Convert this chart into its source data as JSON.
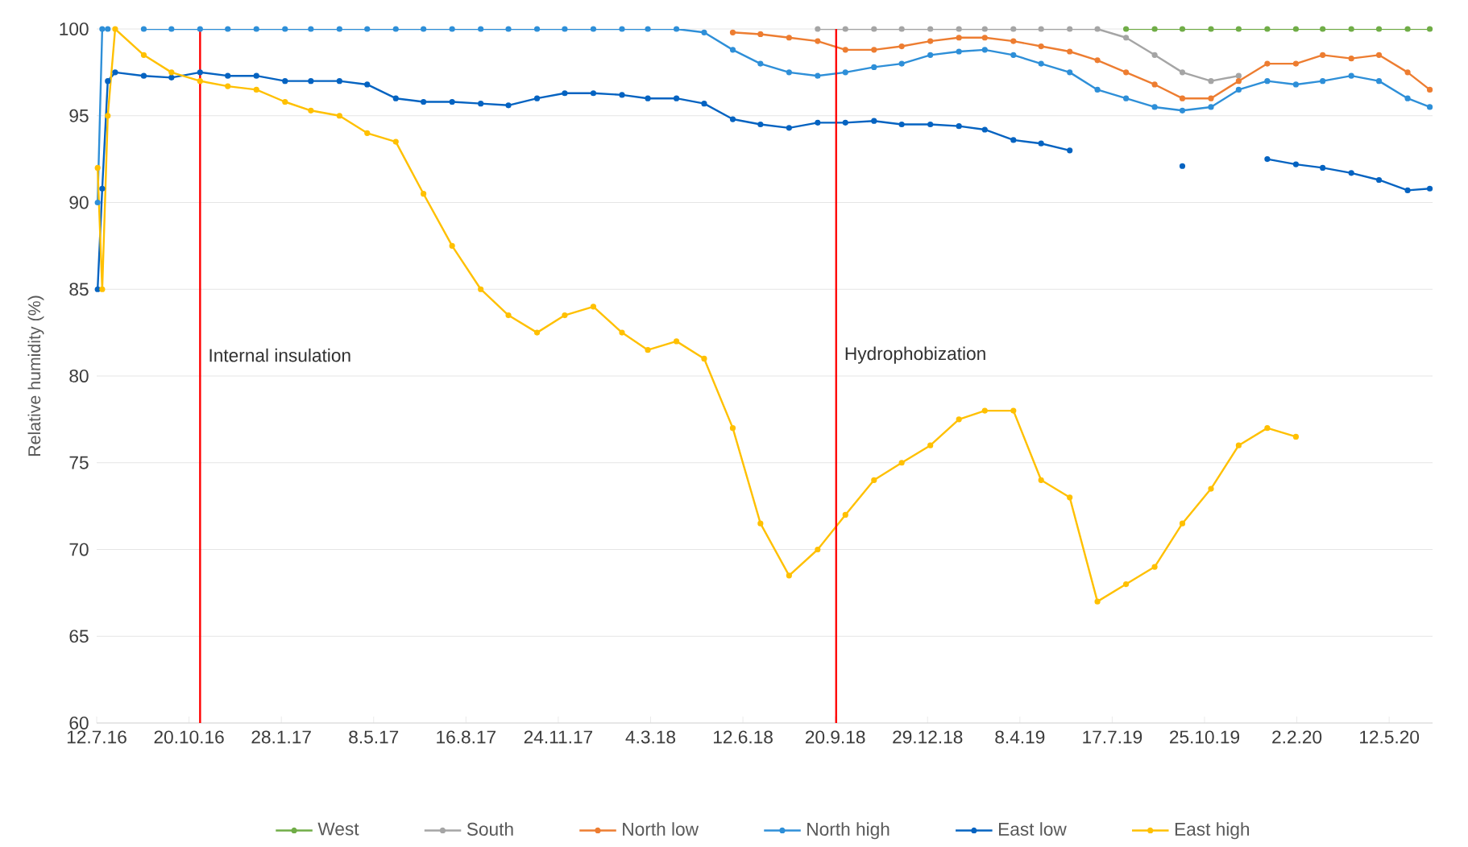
{
  "chart_data": {
    "type": "line",
    "ylabel": "Relative humidity (%)",
    "x": [
      "2016-07-13",
      "2016-07-18",
      "2016-07-24",
      "2016-08-01",
      "2016-09-01",
      "2016-10-01",
      "2016-11-01",
      "2016-12-01",
      "2017-01-01",
      "2017-02-01",
      "2017-03-01",
      "2017-04-01",
      "2017-05-01",
      "2017-06-01",
      "2017-07-01",
      "2017-08-01",
      "2017-09-01",
      "2017-10-01",
      "2017-11-01",
      "2017-12-01",
      "2018-01-01",
      "2018-02-01",
      "2018-03-01",
      "2018-04-01",
      "2018-05-01",
      "2018-06-01",
      "2018-07-01",
      "2018-08-01",
      "2018-09-01",
      "2018-10-01",
      "2018-11-01",
      "2018-12-01",
      "2019-01-01",
      "2019-02-01",
      "2019-03-01",
      "2019-04-01",
      "2019-05-01",
      "2019-06-01",
      "2019-07-01",
      "2019-08-01",
      "2019-09-01",
      "2019-10-01",
      "2019-11-01",
      "2019-12-01",
      "2020-01-01",
      "2020-02-01",
      "2020-03-01",
      "2020-04-01",
      "2020-05-01",
      "2020-06-01",
      "2020-06-25"
    ],
    "series": [
      {
        "name": "West",
        "color": "#70ad47",
        "values": [
          null,
          null,
          null,
          null,
          null,
          null,
          null,
          null,
          null,
          null,
          null,
          null,
          null,
          null,
          null,
          null,
          null,
          null,
          null,
          null,
          null,
          null,
          null,
          null,
          null,
          null,
          null,
          null,
          null,
          null,
          null,
          null,
          null,
          null,
          null,
          null,
          null,
          null,
          null,
          100,
          100,
          100,
          100,
          100,
          100,
          100,
          100,
          100,
          100,
          100,
          100
        ]
      },
      {
        "name": "South",
        "color": "#a5a5a5",
        "values": [
          null,
          null,
          null,
          null,
          null,
          null,
          null,
          null,
          null,
          null,
          null,
          null,
          null,
          null,
          null,
          null,
          null,
          null,
          null,
          null,
          null,
          null,
          null,
          null,
          null,
          null,
          null,
          null,
          100,
          100,
          100,
          100,
          100,
          100,
          100,
          100,
          100,
          100,
          100,
          99.5,
          98.5,
          97.5,
          97,
          97.3,
          null,
          null,
          null,
          null,
          null,
          null,
          null
        ]
      },
      {
        "name": "North low",
        "color": "#ed7d31",
        "values": [
          null,
          null,
          null,
          null,
          null,
          null,
          null,
          null,
          null,
          null,
          null,
          null,
          null,
          null,
          null,
          null,
          null,
          null,
          null,
          null,
          null,
          null,
          null,
          null,
          null,
          99.8,
          99.7,
          99.5,
          99.3,
          98.8,
          98.8,
          99,
          99.3,
          99.5,
          99.5,
          99.3,
          99,
          98.7,
          98.2,
          97.5,
          96.8,
          96,
          96,
          97,
          98,
          98,
          98.5,
          98.3,
          98.5,
          97.5,
          96.5
        ]
      },
      {
        "name": "North high",
        "color": "#2e8fd8",
        "values": [
          90,
          100,
          100,
          null,
          100,
          100,
          100,
          100,
          100,
          100,
          100,
          100,
          100,
          100,
          100,
          100,
          100,
          100,
          100,
          100,
          100,
          100,
          100,
          100,
          99.8,
          98.8,
          98,
          97.5,
          97.3,
          97.5,
          97.8,
          98,
          98.5,
          98.7,
          98.8,
          98.5,
          98,
          97.5,
          96.5,
          96,
          95.5,
          95.3,
          95.5,
          96.5,
          97,
          96.8,
          97,
          97.3,
          97,
          96,
          95.5
        ]
      },
      {
        "name": "East low",
        "color": "#0563c1",
        "values": [
          85,
          90.8,
          97,
          97.5,
          97.3,
          97.2,
          97.5,
          97.3,
          97.3,
          97,
          97,
          97,
          96.8,
          96,
          95.8,
          95.8,
          95.7,
          95.6,
          96,
          96.3,
          96.3,
          96.2,
          96,
          96,
          95.7,
          94.8,
          94.5,
          94.3,
          94.6,
          94.6,
          94.7,
          94.5,
          94.5,
          94.4,
          94.2,
          93.6,
          93.4,
          93,
          null,
          null,
          null,
          92.1,
          null,
          null,
          92.5,
          92.2,
          92,
          91.7,
          91.3,
          90.7,
          90.8
        ]
      },
      {
        "name": "East high",
        "color": "#ffc000",
        "values": [
          92,
          85,
          95,
          100,
          98.5,
          97.5,
          97,
          96.7,
          96.5,
          95.8,
          95.3,
          95,
          94,
          93.5,
          90.5,
          87.5,
          85,
          83.5,
          82.5,
          83.5,
          84,
          82.5,
          81.5,
          82,
          81,
          77,
          71.5,
          68.5,
          70,
          72,
          74,
          75,
          76,
          77.5,
          78,
          78,
          74,
          73,
          67,
          68,
          69,
          71.5,
          73.5,
          76,
          77,
          76.5,
          null,
          null,
          null,
          null,
          null
        ]
      }
    ],
    "xlim": [
      "2016-07-12",
      "2020-06-28"
    ],
    "xticks": [
      {
        "value": "2016-07-12",
        "label": "12.7.16"
      },
      {
        "value": "2016-10-20",
        "label": "20.10.16"
      },
      {
        "value": "2017-01-28",
        "label": "28.1.17"
      },
      {
        "value": "2017-05-08",
        "label": "8.5.17"
      },
      {
        "value": "2017-08-16",
        "label": "16.8.17"
      },
      {
        "value": "2017-11-24",
        "label": "24.11.17"
      },
      {
        "value": "2018-03-04",
        "label": "4.3.18"
      },
      {
        "value": "2018-06-12",
        "label": "12.6.18"
      },
      {
        "value": "2018-09-20",
        "label": "20.9.18"
      },
      {
        "value": "2018-12-29",
        "label": "29.12.18"
      },
      {
        "value": "2019-04-08",
        "label": "8.4.19"
      },
      {
        "value": "2019-07-17",
        "label": "17.7.19"
      },
      {
        "value": "2019-10-25",
        "label": "25.10.19"
      },
      {
        "value": "2020-02-02",
        "label": "2.2.20"
      },
      {
        "value": "2020-05-12",
        "label": "12.5.20"
      }
    ],
    "ylim": [
      60,
      100
    ],
    "yticks": [
      60,
      65,
      70,
      75,
      80,
      85,
      90,
      95,
      100
    ],
    "ref_lines": [
      {
        "axis": "x",
        "value": "2016-11-01",
        "label": "Internal insulation",
        "color": "#ff0000"
      },
      {
        "axis": "x",
        "value": "2018-09-21",
        "label": "Hydrophobization",
        "color": "#ff0000"
      }
    ],
    "grid": "y",
    "legend": "bottom",
    "marker": "circle",
    "line_style": "solid"
  }
}
